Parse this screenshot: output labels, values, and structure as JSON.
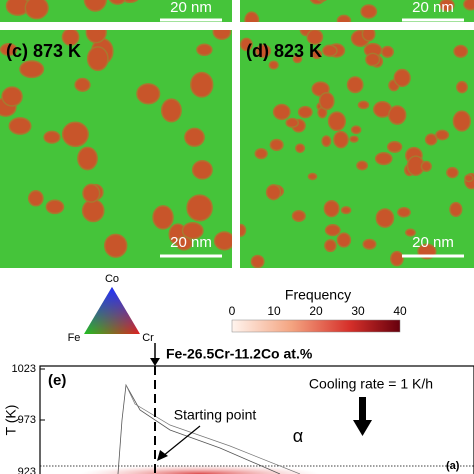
{
  "panels": {
    "top_left": {
      "scale_bar": "20 nm"
    },
    "top_right": {
      "scale_bar": "20 nm"
    },
    "c": {
      "label": "(c) 873 K",
      "scale_bar": "20 nm"
    },
    "d": {
      "label": "(d) 823 K",
      "scale_bar": "20 nm"
    }
  },
  "ternary_key": {
    "top": "Co",
    "left": "Fe",
    "right": "Cr"
  },
  "colorbar": {
    "title": "Frequency",
    "ticks": [
      0,
      10,
      20,
      30,
      40
    ]
  },
  "composition": "Fe-26.5Cr-11.2Co at.%",
  "plot": {
    "label": "(e)",
    "y_label": "T (K)",
    "y_ticks": [
      1023,
      973,
      923
    ],
    "cooling_rate": "Cooling rate = 1 K/h",
    "annotation": "Starting point",
    "phase": "α",
    "corner_label": "(a)"
  }
}
